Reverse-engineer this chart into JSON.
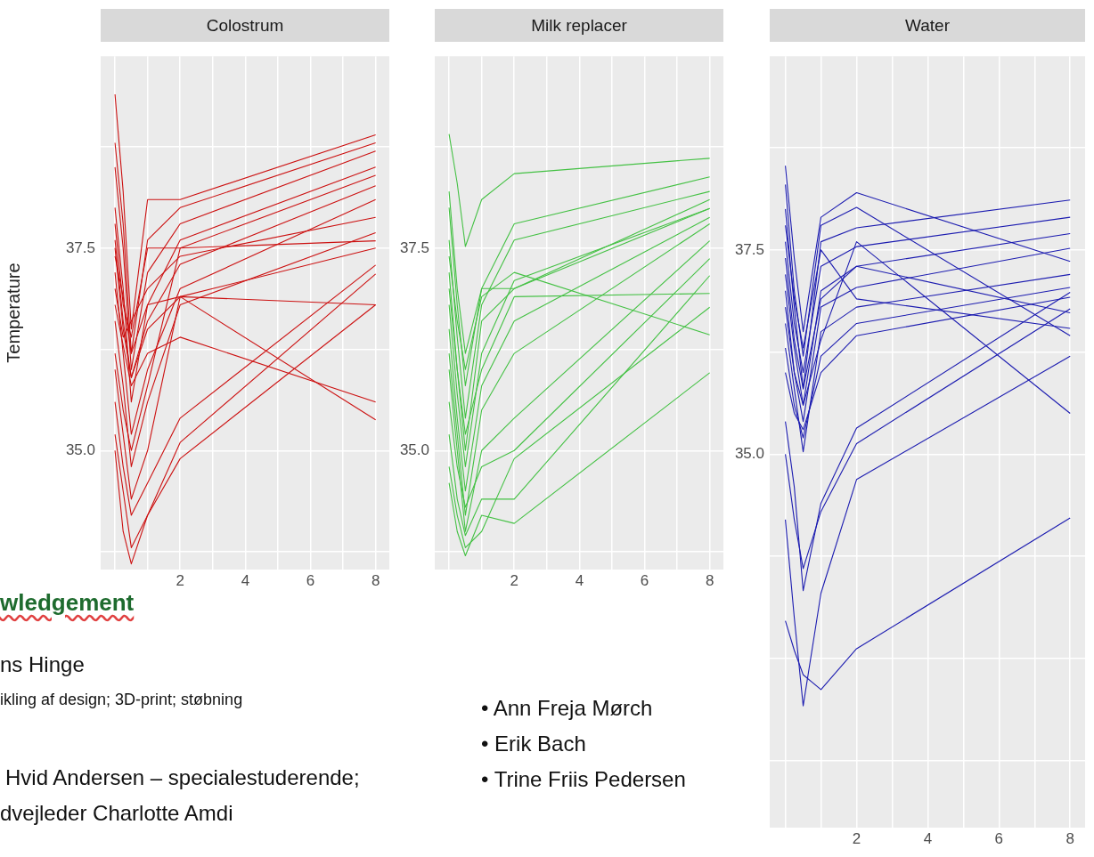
{
  "chart_data": [
    {
      "type": "line",
      "title": "Colostrum",
      "ylabel": "Temperature",
      "x": [
        0,
        0.25,
        0.5,
        1,
        2,
        8
      ],
      "xlim": [
        -0.44,
        8.42
      ],
      "ylim": [
        33.53,
        39.87
      ],
      "xticks": [
        {
          "value": 0,
          "label": null
        },
        {
          "value": 1,
          "label": null
        },
        2,
        {
          "value": 3,
          "label": null
        },
        4,
        {
          "value": 5,
          "label": null
        },
        6,
        {
          "value": 7,
          "label": null
        },
        8
      ],
      "yticks": [
        {
          "value": 33.75,
          "label": null
        },
        {
          "value": 35,
          "label": "35.0"
        },
        {
          "value": 36.25,
          "label": null
        },
        {
          "value": 37.5,
          "label": "37.5"
        },
        {
          "value": 38.75,
          "label": null
        }
      ],
      "grid": true,
      "marker": "none",
      "line_style": "solid",
      "series": [
        {
          "color": "#cc1111",
          "values": [
            39.4,
            38.2,
            36.5,
            38.1,
            38.1,
            38.9
          ]
        },
        {
          "color": "#cc1111",
          "values": [
            38.8,
            37.8,
            36.2,
            37.6,
            38.0,
            38.8
          ]
        },
        {
          "color": "#cc1111",
          "values": [
            38.5,
            37.5,
            36.0,
            37.2,
            37.8,
            38.7
          ]
        },
        {
          "color": "#cc1111",
          "values": [
            38.0,
            37.0,
            35.6,
            36.8,
            37.6,
            38.5
          ]
        },
        {
          "color": "#cc1111",
          "values": [
            37.8,
            36.8,
            36.4,
            37.5,
            37.5,
            38.4
          ]
        },
        {
          "color": "#cc1111",
          "values": [
            37.5,
            36.5,
            35.9,
            36.6,
            37.3,
            38.27
          ]
        },
        {
          "color": "#cc1111",
          "values": [
            37.2,
            36.2,
            35.2,
            36.0,
            37.0,
            38.1
          ]
        },
        {
          "color": "#cc1111",
          "values": [
            37.0,
            36.4,
            36.6,
            37.0,
            37.4,
            37.88
          ]
        },
        {
          "color": "#cc1111",
          "values": [
            36.6,
            35.8,
            34.8,
            35.6,
            36.8,
            37.69
          ]
        },
        {
          "color": "#cc1111",
          "values": [
            36.2,
            35.5,
            35.0,
            35.8,
            37.5,
            37.59
          ]
        },
        {
          "color": "#cc1111",
          "values": [
            36.0,
            35.2,
            34.4,
            35.0,
            36.9,
            37.5
          ]
        },
        {
          "color": "#cc1111",
          "values": [
            35.6,
            34.8,
            34.2,
            34.6,
            35.4,
            37.29
          ]
        },
        {
          "color": "#cc1111",
          "values": [
            35.2,
            34.5,
            33.8,
            34.2,
            35.1,
            37.18
          ]
        },
        {
          "color": "#cc1111",
          "values": [
            37.4,
            36.9,
            36.2,
            36.8,
            36.9,
            36.8
          ]
        },
        {
          "color": "#cc1111",
          "values": [
            36.8,
            36.3,
            35.8,
            36.2,
            36.4,
            35.6
          ]
        },
        {
          "color": "#cc1111",
          "values": [
            37.6,
            36.6,
            35.9,
            36.5,
            36.9,
            35.38
          ]
        },
        {
          "color": "#cc1111",
          "values": [
            35.0,
            34.0,
            33.6,
            34.2,
            34.9,
            36.8
          ]
        }
      ]
    },
    {
      "type": "line",
      "title": "Milk replacer",
      "x": [
        0,
        0.25,
        0.5,
        1,
        2,
        8
      ],
      "xlim": [
        -0.44,
        8.42
      ],
      "ylim": [
        33.53,
        39.87
      ],
      "xticks": [
        {
          "value": 0,
          "label": null
        },
        {
          "value": 1,
          "label": null
        },
        2,
        {
          "value": 3,
          "label": null
        },
        4,
        {
          "value": 5,
          "label": null
        },
        6,
        {
          "value": 7,
          "label": null
        },
        8
      ],
      "yticks": [
        {
          "value": 33.75,
          "label": null
        },
        {
          "value": 35,
          "label": "35.0"
        },
        {
          "value": 36.25,
          "label": null
        },
        {
          "value": 37.5,
          "label": "37.5"
        },
        {
          "value": 38.75,
          "label": null
        }
      ],
      "grid": true,
      "marker": "none",
      "line_style": "solid",
      "series": [
        {
          "color": "#44c144",
          "values": [
            38.91,
            38.3,
            37.52,
            38.1,
            38.42,
            38.61
          ]
        },
        {
          "color": "#44c144",
          "values": [
            38.0,
            36.8,
            35.8,
            37.0,
            37.8,
            38.38
          ]
        },
        {
          "color": "#44c144",
          "values": [
            37.6,
            36.4,
            35.4,
            36.8,
            37.6,
            38.2
          ]
        },
        {
          "color": "#44c144",
          "values": [
            37.2,
            36.0,
            35.0,
            36.6,
            37.0,
            38.1
          ]
        },
        {
          "color": "#44c144",
          "values": [
            36.8,
            35.7,
            34.8,
            36.2,
            37.1,
            37.99
          ]
        },
        {
          "color": "#44c144",
          "values": [
            36.5,
            35.4,
            34.5,
            35.8,
            36.6,
            37.88
          ]
        },
        {
          "color": "#44c144",
          "values": [
            36.2,
            35.2,
            34.2,
            35.5,
            36.2,
            37.8
          ]
        },
        {
          "color": "#44c144",
          "values": [
            36.0,
            35.0,
            34.0,
            35.0,
            35.4,
            37.59
          ]
        },
        {
          "color": "#44c144",
          "values": [
            35.6,
            34.8,
            34.3,
            34.8,
            35.0,
            37.37
          ]
        },
        {
          "color": "#44c144",
          "values": [
            35.2,
            34.4,
            33.95,
            34.4,
            34.4,
            37.16
          ]
        },
        {
          "color": "#44c144",
          "values": [
            37.0,
            36.0,
            35.2,
            36.0,
            36.9,
            36.94
          ]
        },
        {
          "color": "#44c144",
          "values": [
            37.4,
            36.6,
            36.0,
            36.9,
            37.2,
            36.43
          ]
        },
        {
          "color": "#44c144",
          "values": [
            34.8,
            34.2,
            33.8,
            34.0,
            34.9,
            36.77
          ]
        },
        {
          "color": "#44c144",
          "values": [
            34.6,
            34.0,
            33.7,
            34.2,
            34.1,
            35.96
          ]
        },
        {
          "color": "#44c144",
          "values": [
            38.2,
            37.0,
            36.2,
            37.0,
            37.0,
            37.99
          ]
        }
      ]
    },
    {
      "type": "line",
      "title": "Water",
      "x": [
        0,
        0.25,
        0.5,
        1,
        2,
        8
      ],
      "xlim": [
        -0.44,
        8.42
      ],
      "ylim": [
        30.43,
        39.87
      ],
      "xticks": [
        {
          "value": 0,
          "label": null
        },
        {
          "value": 1,
          "label": null
        },
        2,
        {
          "value": 3,
          "label": null
        },
        4,
        {
          "value": 5,
          "label": null
        },
        6,
        {
          "value": 7,
          "label": null
        },
        8
      ],
      "yticks": [
        {
          "value": 31.25,
          "label": null
        },
        {
          "value": 32.5,
          "label": null
        },
        {
          "value": 33.75,
          "label": null
        },
        {
          "value": 35,
          "label": "35.0"
        },
        {
          "value": 36.25,
          "label": null
        },
        {
          "value": 37.5,
          "label": "37.5"
        },
        {
          "value": 38.75,
          "label": null
        }
      ],
      "grid": true,
      "marker": "none",
      "line_style": "solid",
      "series": [
        {
          "color": "#1c1cb0",
          "values": [
            38.53,
            37.4,
            36.5,
            37.9,
            38.2,
            37.36
          ]
        },
        {
          "color": "#1c1cb0",
          "values": [
            38.3,
            37.0,
            36.2,
            37.8,
            38.02,
            36.45
          ]
        },
        {
          "color": "#1c1cb0",
          "values": [
            38.0,
            36.8,
            35.8,
            37.6,
            37.77,
            38.11
          ]
        },
        {
          "color": "#1c1cb0",
          "values": [
            37.6,
            36.6,
            36.0,
            37.3,
            37.54,
            37.9
          ]
        },
        {
          "color": "#1c1cb0",
          "values": [
            37.2,
            36.3,
            35.6,
            37.0,
            37.3,
            37.7
          ]
        },
        {
          "color": "#1c1cb0",
          "values": [
            37.0,
            36.0,
            35.4,
            36.8,
            37.04,
            37.52
          ]
        },
        {
          "color": "#1c1cb0",
          "values": [
            36.6,
            35.8,
            35.03,
            36.5,
            36.8,
            37.2
          ]
        },
        {
          "color": "#1c1cb0",
          "values": [
            36.3,
            35.6,
            35.2,
            36.2,
            36.6,
            37.04
          ]
        },
        {
          "color": "#1c1cb0",
          "values": [
            36.0,
            35.5,
            35.3,
            36.0,
            36.45,
            36.92
          ]
        },
        {
          "color": "#1c1cb0",
          "values": [
            37.4,
            36.4,
            35.8,
            36.9,
            37.3,
            36.73
          ]
        },
        {
          "color": "#1c1cb0",
          "values": [
            36.8,
            36.0,
            35.6,
            36.4,
            37.6,
            35.5
          ]
        },
        {
          "color": "#1c1cb0",
          "values": [
            35.4,
            34.6,
            33.33,
            34.4,
            35.32,
            36.98
          ]
        },
        {
          "color": "#1c1cb0",
          "values": [
            35.0,
            34.2,
            33.6,
            34.3,
            35.13,
            36.78
          ]
        },
        {
          "color": "#1c1cb0",
          "values": [
            34.2,
            33.0,
            31.92,
            33.3,
            34.69,
            36.2
          ]
        },
        {
          "color": "#1c1cb0",
          "values": [
            32.96,
            32.6,
            32.3,
            32.12,
            32.62,
            34.22
          ]
        },
        {
          "color": "#1c1cb0",
          "values": [
            37.8,
            36.9,
            36.3,
            37.5,
            36.9,
            36.54
          ]
        }
      ]
    },
    {
      "type": "other",
      "annotations": [
        "wledgement",
        "ns Hinge",
        "ikling af design; 3D-print; støbning",
        "Hvid Andersen – specialestuderende;",
        "dvejleder Charlotte Amdi",
        "• Ann Freja Mørch",
        "• Erik Bach",
        "• Trine Friis Pedersen"
      ]
    }
  ]
}
